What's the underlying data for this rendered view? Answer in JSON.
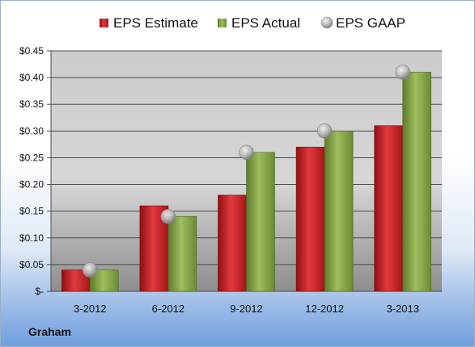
{
  "company": "Graham",
  "colors": {
    "estimate": "#c41f22",
    "actual": "#86a546",
    "gaap": "#b4b4b4"
  },
  "chart_data": {
    "type": "bar",
    "categories": [
      "3-2012",
      "6-2012",
      "9-2012",
      "12-2012",
      "3-2013"
    ],
    "series": [
      {
        "name": "EPS Estimate",
        "kind": "bar",
        "values": [
          0.04,
          0.16,
          0.18,
          0.27,
          0.31
        ]
      },
      {
        "name": "EPS Actual",
        "kind": "bar",
        "values": [
          0.04,
          0.14,
          0.26,
          0.3,
          0.41
        ]
      },
      {
        "name": "EPS GAAP",
        "kind": "marker",
        "values": [
          0.04,
          0.14,
          0.26,
          0.3,
          0.41
        ]
      }
    ],
    "ylim": [
      0,
      0.45
    ],
    "yticks": [
      0,
      0.05,
      0.1,
      0.15,
      0.2,
      0.25,
      0.3,
      0.35,
      0.4,
      0.45
    ],
    "ytick_labels": [
      "$-",
      "$0.05",
      "$0.10",
      "$0.15",
      "$0.20",
      "$0.25",
      "$0.30",
      "$0.35",
      "$0.40",
      "$0.45"
    ],
    "grid": true,
    "legend": "top"
  }
}
